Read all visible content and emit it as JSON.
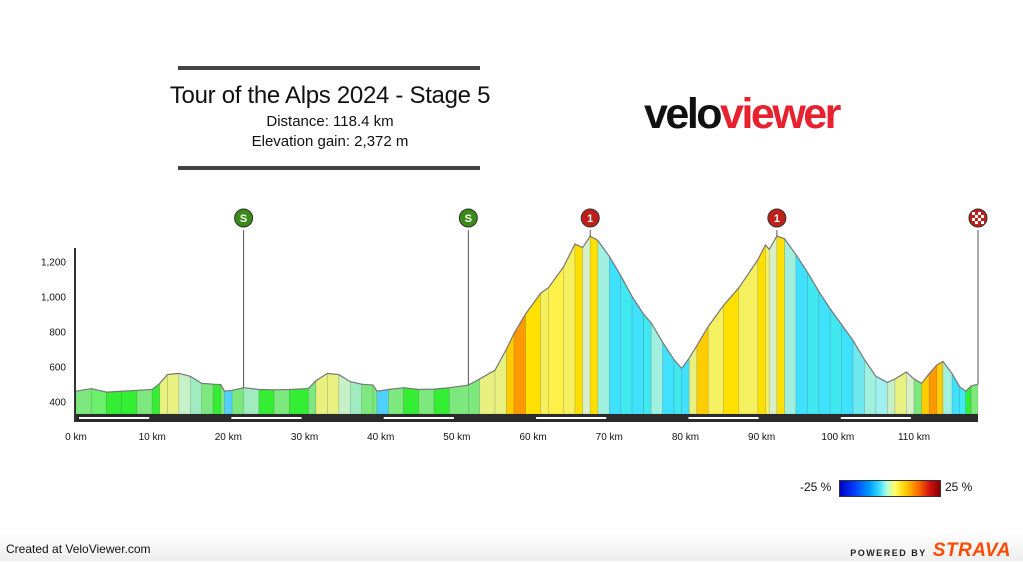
{
  "header": {
    "title": "Tour of the Alps 2024 - Stage 5",
    "distance_line": "Distance: 118.4 km",
    "elevation_line": "Elevation gain: 2,372 m"
  },
  "logo": {
    "part1": "velo",
    "part2": "viewer"
  },
  "legend": {
    "min_label": "-25 %",
    "max_label": "25 %"
  },
  "footer": {
    "credit": "Created at VeloViewer.com",
    "powered_by": "POWERED BY",
    "brand": "STRAVA",
    "brand_color": "#fc4c02"
  },
  "chart_data": {
    "type": "area",
    "xlabel": "",
    "ylabel": "",
    "x_unit": "km",
    "xlim": [
      0,
      118.4
    ],
    "ylim": [
      330,
      1380
    ],
    "x_ticks": [
      0,
      10,
      20,
      30,
      40,
      50,
      60,
      70,
      80,
      90,
      100,
      110
    ],
    "x_tick_labels": [
      "0 km",
      "10 km",
      "20 km",
      "30 km",
      "40 km",
      "50 km",
      "60 km",
      "70 km",
      "80 km",
      "90 km",
      "100 km",
      "110 km"
    ],
    "y_ticks": [
      400,
      600,
      800,
      1000,
      1200
    ],
    "y_tick_labels": [
      "400",
      "600",
      "800",
      "1,000",
      "1,200"
    ],
    "profile": [
      {
        "km": 0,
        "elev": 460,
        "color": "#7de87d"
      },
      {
        "km": 2,
        "elev": 475,
        "color": "#6cf06c"
      },
      {
        "km": 4,
        "elev": 455,
        "color": "#33ee33"
      },
      {
        "km": 6,
        "elev": 460,
        "color": "#33ee33"
      },
      {
        "km": 8,
        "elev": 465,
        "color": "#7de87d"
      },
      {
        "km": 10,
        "elev": 470,
        "color": "#33ee33"
      },
      {
        "km": 11,
        "elev": 505,
        "color": "#e8f080"
      },
      {
        "km": 12,
        "elev": 555,
        "color": "#e8f080"
      },
      {
        "km": 13.5,
        "elev": 562,
        "color": "#c8f0c8"
      },
      {
        "km": 15,
        "elev": 545,
        "color": "#a0ecc0"
      },
      {
        "km": 16.5,
        "elev": 505,
        "color": "#7de87d"
      },
      {
        "km": 18,
        "elev": 500,
        "color": "#33ee33"
      },
      {
        "km": 19,
        "elev": 498,
        "color": "#7de87d"
      },
      {
        "km": 19.5,
        "elev": 460,
        "color": "#50d0ff"
      },
      {
        "km": 20.5,
        "elev": 465,
        "color": "#7de87d"
      },
      {
        "km": 22,
        "elev": 480,
        "color": "#a0ecc0"
      },
      {
        "km": 24,
        "elev": 470,
        "color": "#33ee33"
      },
      {
        "km": 26,
        "elev": 468,
        "color": "#7de87d"
      },
      {
        "km": 28,
        "elev": 470,
        "color": "#33ee33"
      },
      {
        "km": 30.5,
        "elev": 475,
        "color": "#7de87d"
      },
      {
        "km": 31.5,
        "elev": 520,
        "color": "#e8f080"
      },
      {
        "km": 33,
        "elev": 562,
        "color": "#e8f080"
      },
      {
        "km": 34.5,
        "elev": 555,
        "color": "#c8f0c8"
      },
      {
        "km": 36,
        "elev": 515,
        "color": "#a0ecc0"
      },
      {
        "km": 37.5,
        "elev": 500,
        "color": "#7de87d"
      },
      {
        "km": 39,
        "elev": 495,
        "color": "#7de87d"
      },
      {
        "km": 39.5,
        "elev": 460,
        "color": "#50d0ff"
      },
      {
        "km": 41,
        "elev": 470,
        "color": "#7de87d"
      },
      {
        "km": 43,
        "elev": 480,
        "color": "#33ee33"
      },
      {
        "km": 45,
        "elev": 470,
        "color": "#7de87d"
      },
      {
        "km": 47,
        "elev": 472,
        "color": "#33ee33"
      },
      {
        "km": 49,
        "elev": 480,
        "color": "#7de87d"
      },
      {
        "km": 51.5,
        "elev": 495,
        "color": "#7de87d"
      },
      {
        "km": 53,
        "elev": 530,
        "color": "#e8f080"
      },
      {
        "km": 55,
        "elev": 580,
        "color": "#e8f080"
      },
      {
        "km": 56.5,
        "elev": 700,
        "color": "#ffcc00"
      },
      {
        "km": 57.5,
        "elev": 790,
        "color": "#ff9900"
      },
      {
        "km": 59,
        "elev": 900,
        "color": "#ffe000"
      },
      {
        "km": 61,
        "elev": 1020,
        "color": "#f5f060"
      },
      {
        "km": 62,
        "elev": 1050,
        "color": "#fff04a"
      },
      {
        "km": 64,
        "elev": 1170,
        "color": "#f5f060"
      },
      {
        "km": 65.5,
        "elev": 1300,
        "color": "#ffe000"
      },
      {
        "km": 66.5,
        "elev": 1280,
        "color": "#d8f0c8"
      },
      {
        "km": 67.5,
        "elev": 1345,
        "color": "#ffe000"
      },
      {
        "km": 68.5,
        "elev": 1320,
        "color": "#a0f0e0"
      },
      {
        "km": 70,
        "elev": 1230,
        "color": "#40e0ff"
      },
      {
        "km": 71.5,
        "elev": 1120,
        "color": "#40e8f0"
      },
      {
        "km": 73,
        "elev": 1000,
        "color": "#40e0ff"
      },
      {
        "km": 74.5,
        "elev": 900,
        "color": "#40e8f0"
      },
      {
        "km": 75.5,
        "elev": 850,
        "color": "#a0f0e0"
      },
      {
        "km": 77,
        "elev": 740,
        "color": "#40e0ff"
      },
      {
        "km": 78.5,
        "elev": 640,
        "color": "#40e8f0"
      },
      {
        "km": 79.5,
        "elev": 590,
        "color": "#40e0ff"
      },
      {
        "km": 80.5,
        "elev": 650,
        "color": "#e8f080"
      },
      {
        "km": 81.5,
        "elev": 720,
        "color": "#ffcc00"
      },
      {
        "km": 83,
        "elev": 830,
        "color": "#f5f060"
      },
      {
        "km": 85,
        "elev": 950,
        "color": "#ffe000"
      },
      {
        "km": 87,
        "elev": 1050,
        "color": "#f5f060"
      },
      {
        "km": 89.5,
        "elev": 1210,
        "color": "#ffe000"
      },
      {
        "km": 90.5,
        "elev": 1295,
        "color": "#f5f060"
      },
      {
        "km": 91,
        "elev": 1270,
        "color": "#d8f0c8"
      },
      {
        "km": 92,
        "elev": 1345,
        "color": "#ffe000"
      },
      {
        "km": 93,
        "elev": 1330,
        "color": "#a0f0e0"
      },
      {
        "km": 94.5,
        "elev": 1240,
        "color": "#40e0ff"
      },
      {
        "km": 96,
        "elev": 1140,
        "color": "#40e8f0"
      },
      {
        "km": 97.5,
        "elev": 1030,
        "color": "#40e0ff"
      },
      {
        "km": 99,
        "elev": 930,
        "color": "#40e8f0"
      },
      {
        "km": 100.5,
        "elev": 840,
        "color": "#40e0ff"
      },
      {
        "km": 102,
        "elev": 750,
        "color": "#70e8f0"
      },
      {
        "km": 103.5,
        "elev": 640,
        "color": "#a0f0e0"
      },
      {
        "km": 105,
        "elev": 545,
        "color": "#a0f0f0"
      },
      {
        "km": 106.5,
        "elev": 510,
        "color": "#c8f0c8"
      },
      {
        "km": 107.5,
        "elev": 530,
        "color": "#e8f080"
      },
      {
        "km": 109,
        "elev": 570,
        "color": "#d8f0c8"
      },
      {
        "km": 110,
        "elev": 530,
        "color": "#7de87d"
      },
      {
        "km": 111,
        "elev": 505,
        "color": "#ffcc00"
      },
      {
        "km": 112,
        "elev": 560,
        "color": "#ff9900"
      },
      {
        "km": 113,
        "elev": 610,
        "color": "#ffcc00"
      },
      {
        "km": 113.8,
        "elev": 630,
        "color": "#a0f0e0"
      },
      {
        "km": 115,
        "elev": 560,
        "color": "#40e0ff"
      },
      {
        "km": 116,
        "elev": 485,
        "color": "#40e8f0"
      },
      {
        "km": 116.8,
        "elev": 460,
        "color": "#33ee33"
      },
      {
        "km": 117.5,
        "elev": 490,
        "color": "#7de87d"
      },
      {
        "km": 118.4,
        "elev": 500,
        "color": "#7de87d"
      }
    ],
    "markers": [
      {
        "km": 22,
        "label": "S",
        "kind": "sprint",
        "color": "#3a8a1a"
      },
      {
        "km": 51.5,
        "label": "S",
        "kind": "sprint",
        "color": "#3a8a1a"
      },
      {
        "km": 67.5,
        "label": "1",
        "kind": "climb",
        "color": "#c0201a"
      },
      {
        "km": 92,
        "label": "1",
        "kind": "climb",
        "color": "#c0201a"
      },
      {
        "km": 118.4,
        "label": "",
        "kind": "finish",
        "color": "#c0201a"
      }
    ]
  }
}
